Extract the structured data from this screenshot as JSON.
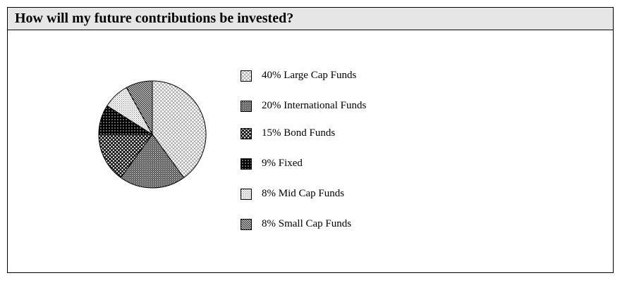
{
  "header": {
    "title": "How will my future contributions be invested?"
  },
  "chart_data": {
    "type": "pie",
    "title": "How will my future contributions be invested?",
    "slices": [
      {
        "label": "40% Large Cap Funds",
        "value": 40,
        "pattern": "large-cap-pattern"
      },
      {
        "label": "20% International Funds",
        "value": 20,
        "pattern": "international-pattern"
      },
      {
        "label": "15% Bond Funds",
        "value": 15,
        "pattern": "bond-pattern"
      },
      {
        "label": "9% Fixed",
        "value": 9,
        "pattern": "fixed-pattern"
      },
      {
        "label": "8% Mid Cap Funds",
        "value": 8,
        "pattern": "mid-cap-pattern"
      },
      {
        "label": "8% Small Cap Funds",
        "value": 8,
        "pattern": "small-cap-pattern"
      }
    ],
    "legend_position": "right"
  }
}
